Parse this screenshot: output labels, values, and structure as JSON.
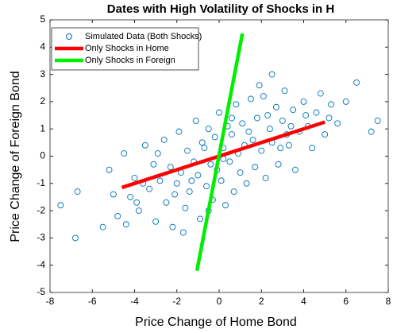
{
  "chart_data": {
    "type": "scatter",
    "title": "Dates with High Volatility of Shocks in H",
    "x_label": "Price Change of Home Bond",
    "y_label": "Price Change of Foreign Bond",
    "xlim": [
      -8,
      8
    ],
    "xticks": [
      -8,
      -6,
      -4,
      -2,
      0,
      2,
      4,
      6,
      8
    ],
    "ylim": [
      -5,
      5
    ],
    "yticks": [
      -5,
      -4,
      -3,
      -2,
      -1,
      0,
      1,
      2,
      3,
      4,
      5
    ],
    "grid": false,
    "legend": "upper-left",
    "series": [
      {
        "name": "Simulated Data (Both Shocks)",
        "type": "scatter",
        "color": "#0072bd",
        "x": [
          -6.8,
          -7.5,
          6.5,
          7.5,
          2.5,
          -6.7,
          7.2,
          -5.5,
          -5.2,
          -4.8,
          -4.5,
          -4.2,
          -4.0,
          -3.8,
          -3.5,
          -3.3,
          -3.1,
          -3.0,
          -2.8,
          -2.6,
          -2.5,
          -2.3,
          -2.2,
          -2.0,
          -1.9,
          -1.8,
          -1.6,
          -1.5,
          -1.4,
          -1.2,
          -1.1,
          -1.0,
          -0.9,
          -0.8,
          -0.6,
          -0.5,
          -0.4,
          -0.3,
          -0.2,
          -0.1,
          0.0,
          0.1,
          0.2,
          0.3,
          0.4,
          0.5,
          0.6,
          0.7,
          0.8,
          0.9,
          1.0,
          1.1,
          1.2,
          1.3,
          1.5,
          1.6,
          1.7,
          1.8,
          2.0,
          2.1,
          2.2,
          2.4,
          2.5,
          2.7,
          2.8,
          3.0,
          3.1,
          3.3,
          3.5,
          3.6,
          3.8,
          4.0,
          4.2,
          4.4,
          4.6,
          4.8,
          5.0,
          5.3,
          5.6,
          6.0,
          -5.0,
          -4.4,
          -3.6,
          -2.9,
          -2.1,
          -1.3,
          -0.7,
          0.2,
          1.4,
          2.3,
          3.2,
          4.1,
          5.2,
          -3.9,
          -1.7,
          1.9,
          3.4,
          -0.5,
          0.6,
          2.9
        ],
        "values": [
          -3.0,
          -1.8,
          2.7,
          1.3,
          3.0,
          -1.3,
          0.9,
          -2.6,
          -0.5,
          -2.2,
          0.1,
          -1.5,
          -0.8,
          -2.0,
          0.4,
          -1.2,
          -0.3,
          -2.4,
          -0.9,
          0.6,
          -1.7,
          -0.4,
          -2.6,
          -1.0,
          0.9,
          -0.6,
          -1.9,
          0.2,
          -1.3,
          -0.2,
          1.3,
          -0.7,
          -2.3,
          0.5,
          -1.1,
          1.0,
          -0.3,
          -1.6,
          0.7,
          -0.5,
          1.6,
          -0.9,
          0.3,
          -1.8,
          1.1,
          -0.2,
          0.8,
          -1.3,
          1.9,
          0.1,
          -0.6,
          1.2,
          0.4,
          -1.0,
          2.1,
          0.6,
          -0.4,
          1.4,
          0.2,
          2.2,
          -0.8,
          1.0,
          0.5,
          1.8,
          -0.3,
          1.3,
          2.4,
          0.4,
          1.7,
          -0.5,
          0.9,
          2.0,
          1.1,
          0.3,
          1.6,
          2.3,
          0.8,
          1.9,
          1.2,
          2.0,
          -1.4,
          -2.5,
          -1.0,
          0.1,
          -1.4,
          -0.9,
          0.3,
          -0.1,
          0.9,
          1.5,
          0.8,
          1.5,
          1.4,
          -1.7,
          -2.8,
          2.6,
          1.1,
          -2.0,
          1.4,
          0.3
        ]
      },
      {
        "name": "Only Shocks in Home",
        "type": "line",
        "color": "#ff0000",
        "x": [
          -4.6,
          5.0
        ],
        "values": [
          -1.15,
          1.25
        ]
      },
      {
        "name": "Only Shocks in Foreign",
        "type": "line",
        "color": "#00ee00",
        "x": [
          -1.05,
          1.1
        ],
        "values": [
          -4.2,
          4.5
        ]
      }
    ]
  }
}
